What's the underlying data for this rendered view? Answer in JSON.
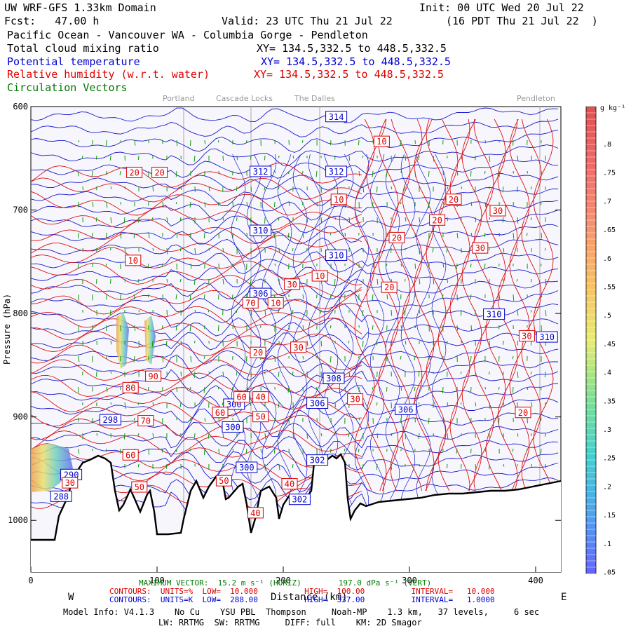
{
  "header": {
    "line1_left": "UW WRF-GFS 1.33km Domain",
    "line1_right": "Init: 00 UTC Wed 20 Jul 22",
    "line2_left": "Fcst:   47.00 h",
    "line2_mid": "Valid: 23 UTC Thu 21 Jul 22",
    "line2_right": "(16 PDT Thu 21 Jul 22  )",
    "line3": "Pacific Ocean - Vancouver WA - Columbia Gorge - Pendleton",
    "fields": [
      {
        "name": "Total cloud mixing ratio",
        "xy": "XY= 134.5,332.5 to 448.5,332.5",
        "color": "#000000"
      },
      {
        "name": "Potential temperature",
        "xy": "XY= 134.5,332.5 to 448.5,332.5",
        "color": "#0000cc"
      },
      {
        "name": "Relative humidity (w.r.t. water)",
        "xy": "XY= 134.5,332.5 to 448.5,332.5",
        "color": "#dd0000"
      },
      {
        "name": "Circulation Vectors",
        "xy": "",
        "color": "#007700"
      }
    ]
  },
  "places": [
    "Portland",
    "Cascade Locks",
    "The Dalles",
    "Pendleton"
  ],
  "colorbar": {
    "unit": "g kg⁻¹",
    "ticks": [
      ".8",
      ".75",
      ".7",
      ".65",
      ".6",
      ".55",
      ".5",
      ".45",
      ".4",
      ".35",
      ".3",
      ".25",
      ".2",
      ".15",
      ".1",
      ".05"
    ]
  },
  "chart_data": {
    "type": "cross-section",
    "x_axis": {
      "min": 0,
      "max": 420,
      "ticks": [
        "0",
        "100",
        "200",
        "300",
        "400"
      ],
      "label": "Distance (km)",
      "left_end": "W",
      "right_end": "E"
    },
    "y_axis": {
      "min": 600,
      "max": 1050,
      "ticks": [
        "600",
        "700",
        "800",
        "900",
        "1000"
      ],
      "label": "Pressure (hPa)"
    },
    "theta_labels": [
      {
        "x": 242,
        "p": 610,
        "v": "314"
      },
      {
        "x": 182,
        "p": 663,
        "v": "312"
      },
      {
        "x": 242,
        "p": 663,
        "v": "312"
      },
      {
        "x": 182,
        "p": 720,
        "v": "310"
      },
      {
        "x": 242,
        "p": 744,
        "v": "310"
      },
      {
        "x": 182,
        "p": 781,
        "v": "306"
      },
      {
        "x": 367,
        "p": 801,
        "v": "310"
      },
      {
        "x": 409,
        "p": 823,
        "v": "310"
      },
      {
        "x": 240,
        "p": 863,
        "v": "308"
      },
      {
        "x": 227,
        "p": 887,
        "v": "306"
      },
      {
        "x": 297,
        "p": 893,
        "v": "306"
      },
      {
        "x": 63,
        "p": 903,
        "v": "298"
      },
      {
        "x": 161,
        "p": 888,
        "v": "300"
      },
      {
        "x": 160,
        "p": 910,
        "v": "300"
      },
      {
        "x": 171,
        "p": 949,
        "v": "300"
      },
      {
        "x": 227,
        "p": 942,
        "v": "302"
      },
      {
        "x": 213,
        "p": 980,
        "v": "302"
      },
      {
        "x": 32,
        "p": 956,
        "v": "290"
      },
      {
        "x": 24,
        "p": 977,
        "v": "288"
      }
    ],
    "rh_labels": [
      {
        "x": 82,
        "p": 664,
        "v": "20"
      },
      {
        "x": 102,
        "p": 664,
        "v": "20"
      },
      {
        "x": 278,
        "p": 634,
        "v": "10"
      },
      {
        "x": 244,
        "p": 690,
        "v": "10"
      },
      {
        "x": 335,
        "p": 690,
        "v": "20"
      },
      {
        "x": 322,
        "p": 710,
        "v": "20"
      },
      {
        "x": 370,
        "p": 701,
        "v": "30"
      },
      {
        "x": 290,
        "p": 727,
        "v": "20"
      },
      {
        "x": 356,
        "p": 737,
        "v": "30"
      },
      {
        "x": 81,
        "p": 749,
        "v": "10"
      },
      {
        "x": 207,
        "p": 772,
        "v": "30"
      },
      {
        "x": 229,
        "p": 764,
        "v": "10"
      },
      {
        "x": 284,
        "p": 775,
        "v": "20"
      },
      {
        "x": 174,
        "p": 790,
        "v": "70"
      },
      {
        "x": 194,
        "p": 790,
        "v": "10"
      },
      {
        "x": 212,
        "p": 833,
        "v": "30"
      },
      {
        "x": 180,
        "p": 838,
        "v": "20"
      },
      {
        "x": 97,
        "p": 861,
        "v": "90"
      },
      {
        "x": 79,
        "p": 872,
        "v": "80"
      },
      {
        "x": 167,
        "p": 881,
        "v": "60"
      },
      {
        "x": 182,
        "p": 881,
        "v": "40"
      },
      {
        "x": 257,
        "p": 883,
        "v": "30"
      },
      {
        "x": 150,
        "p": 896,
        "v": "60"
      },
      {
        "x": 91,
        "p": 904,
        "v": "70"
      },
      {
        "x": 182,
        "p": 900,
        "v": "50"
      },
      {
        "x": 390,
        "p": 896,
        "v": "20"
      },
      {
        "x": 79,
        "p": 937,
        "v": "60"
      },
      {
        "x": 31,
        "p": 964,
        "v": "30"
      },
      {
        "x": 86,
        "p": 968,
        "v": "50"
      },
      {
        "x": 153,
        "p": 962,
        "v": "50"
      },
      {
        "x": 205,
        "p": 965,
        "v": "40"
      },
      {
        "x": 178,
        "p": 993,
        "v": "40"
      },
      {
        "x": 393,
        "p": 822,
        "v": "30"
      }
    ]
  },
  "footer": {
    "vector": "MAXIMUM VECTOR:  15.2 m s⁻¹ (HORIZ)        197.0 dPa s⁻¹ (VERT)",
    "rh_contours": "CONTOURS:  UNITS=%  LOW=  10.000          HIGH=  100.00          INTERVAL=   10.000",
    "theta_contours": "CONTOURS:  UNITS=K  LOW=  288.00          HIGH=  337.00          INTERVAL=   1.0000",
    "model_info": "Model Info: V4.1.3    No Cu    YSU PBL  Thompson     Noah-MP    1.3 km,   37 levels,     6 sec",
    "physics": "LW: RRTMG  SW: RRTMG     DIFF: full    KM: 2D Smagor"
  }
}
